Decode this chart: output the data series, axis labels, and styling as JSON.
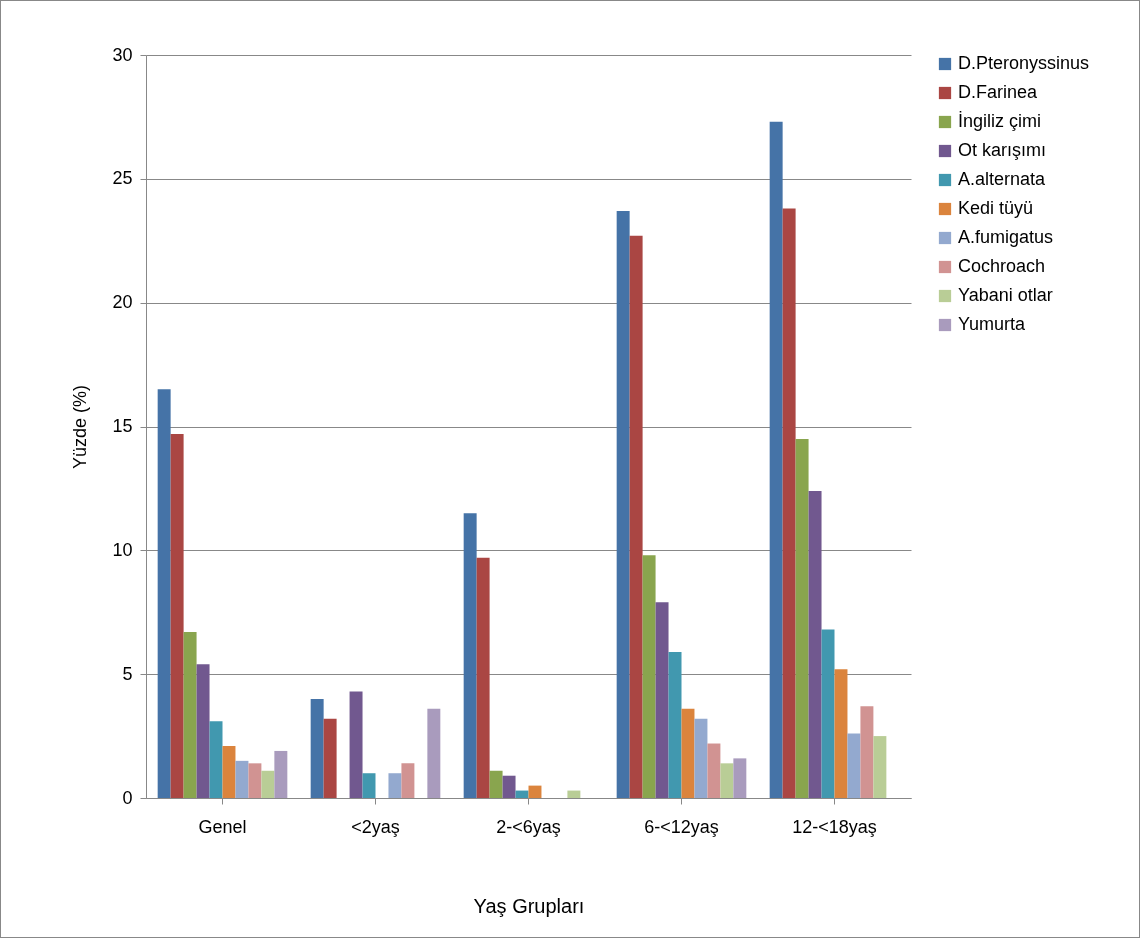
{
  "chart_data": {
    "type": "bar",
    "xlabel": "Yaş Grupları",
    "ylabel": "Yüzde (%)",
    "categories": [
      "Genel",
      "<2yaş",
      "2-<6yaş",
      "6-<12yaş",
      "12-<18yaş"
    ],
    "series": [
      {
        "name": "D.Pteronyssinus",
        "color": "#4573a7",
        "values": [
          16.5,
          4.0,
          11.5,
          23.7,
          27.3
        ]
      },
      {
        "name": "D.Farinea",
        "color": "#aa4643",
        "values": [
          14.7,
          3.2,
          9.7,
          22.7,
          23.8
        ]
      },
      {
        "name": "İngiliz çimi",
        "color": "#89a54e",
        "values": [
          6.7,
          null,
          1.1,
          9.8,
          14.5
        ]
      },
      {
        "name": "Ot karışımı",
        "color": "#71588f",
        "values": [
          5.4,
          4.3,
          0.9,
          7.9,
          12.4
        ]
      },
      {
        "name": "A.alternata",
        "color": "#4198af",
        "values": [
          3.1,
          1.0,
          0.3,
          5.9,
          6.8
        ]
      },
      {
        "name": "Kedi tüyü",
        "color": "#db843d",
        "values": [
          2.1,
          null,
          0.5,
          3.6,
          5.2
        ]
      },
      {
        "name": "A.fumigatus",
        "color": "#93a9cf",
        "values": [
          1.5,
          1.0,
          null,
          3.2,
          2.6
        ]
      },
      {
        "name": "Cochroach",
        "color": "#d19392",
        "values": [
          1.4,
          1.4,
          null,
          2.2,
          3.7
        ]
      },
      {
        "name": "Yabani otlar",
        "color": "#b9cd96",
        "values": [
          1.1,
          null,
          0.3,
          1.4,
          2.5
        ]
      },
      {
        "name": "Yumurta",
        "color": "#a99bbd",
        "values": [
          1.9,
          3.6,
          null,
          1.6,
          null
        ]
      }
    ],
    "ylim": [
      0,
      30
    ],
    "yticks": [
      0,
      5,
      10,
      15,
      20,
      25,
      30
    ],
    "grid": "y",
    "legend": "right"
  }
}
